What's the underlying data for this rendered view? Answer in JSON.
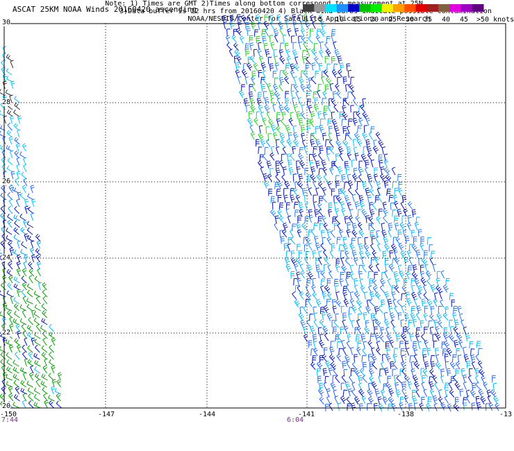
{
  "title": "ASCAT 25KM NOAA Winds 20160420 ascending",
  "legend": {
    "labels": [
      "0",
      "5",
      "10",
      "15",
      "20",
      "25",
      "30",
      "35",
      "40",
      "45",
      ">50 knots"
    ],
    "colors": [
      "#404040",
      "#9a9a9a",
      "#00e0ff",
      "#2090ff",
      "#0000cc",
      "#00c000",
      "#00ee00",
      "#f0f000",
      "#ffa000",
      "#ff5000",
      "#e00000",
      "#a02020",
      "#806040",
      "#e000e0",
      "#a000c0",
      "#600080"
    ]
  },
  "axes": {
    "x_ticks": [
      "-150",
      "-147",
      "-144",
      "-141",
      "-138",
      "-13"
    ],
    "y_ticks": [
      "30",
      "28",
      "26",
      "24",
      "22",
      "20"
    ]
  },
  "times": [
    {
      "label": "7:44",
      "color": "#7a2a8a"
    },
    {
      "label": "6:04",
      "color": "#7a2a8a"
    }
  ],
  "notes": [
    "Note: 1) Times are GMT 2)Times along bottom correspond to measurement at 25N",
    "3)Data buffer is 22 hrs from 20160420 4) Black wind barbs indicate possible contamination",
    "NOAA/NESDIS/Center for Satellite Applications and Research"
  ]
}
